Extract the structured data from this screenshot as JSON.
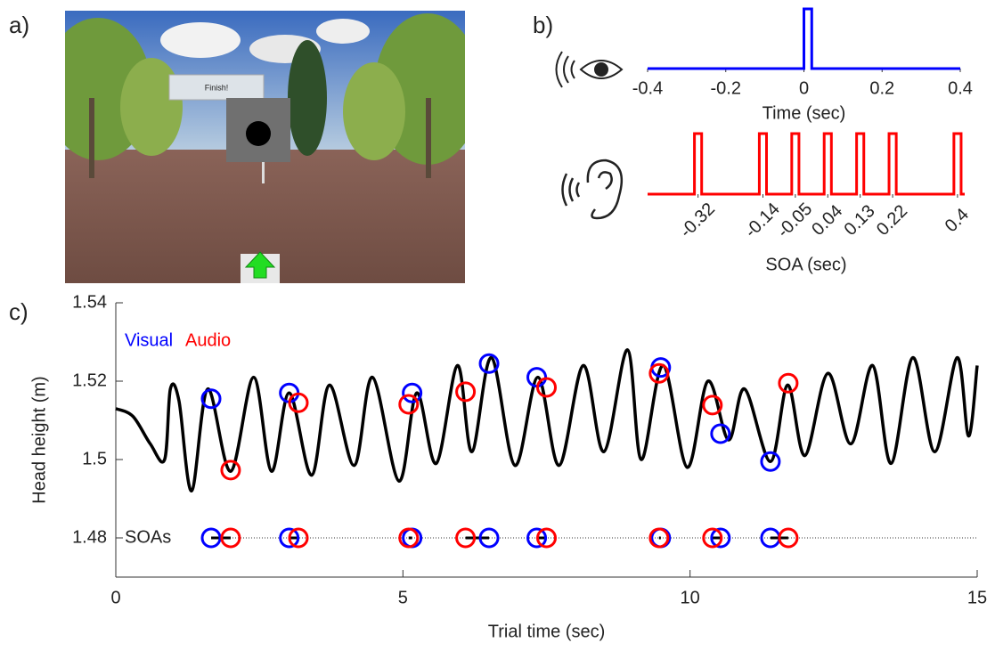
{
  "panels": {
    "a": "a)",
    "b": "b)",
    "c": "c)"
  },
  "scene": {
    "sign": "Finish!"
  },
  "chart_data": [
    {
      "type": "line",
      "xlabel": "Time (sec)",
      "color": "#0000ff",
      "xlim": [
        -0.4,
        0.4
      ],
      "xticks": [
        -0.4,
        -0.2,
        0,
        0.2,
        0.4
      ],
      "ylim": [
        0,
        1
      ],
      "x": [
        -0.4,
        0.0,
        0.0,
        0.02,
        0.02,
        0.4
      ],
      "y": [
        0,
        0,
        1,
        1,
        0,
        0
      ]
    },
    {
      "type": "line",
      "xlabel": "SOA (sec)",
      "color": "#ff0000",
      "rotate_ticks": true,
      "xlim": [
        -0.46,
        0.42
      ],
      "xticks": [
        -0.32,
        -0.14,
        -0.05,
        0.04,
        0.13,
        0.22,
        0.4
      ],
      "ylim": [
        0,
        1
      ],
      "x": [
        -0.46,
        -0.33,
        -0.33,
        -0.31,
        -0.31,
        -0.15,
        -0.15,
        -0.13,
        -0.13,
        -0.06,
        -0.06,
        -0.04,
        -0.04,
        0.03,
        0.03,
        0.05,
        0.05,
        0.12,
        0.12,
        0.14,
        0.14,
        0.21,
        0.21,
        0.23,
        0.23,
        0.39,
        0.39,
        0.41,
        0.41,
        0.42
      ],
      "y": [
        0,
        0,
        1,
        1,
        0,
        0,
        1,
        1,
        0,
        0,
        1,
        1,
        0,
        0,
        1,
        1,
        0,
        0,
        1,
        1,
        0,
        0,
        1,
        1,
        0,
        0,
        1,
        1,
        0,
        0
      ]
    },
    {
      "type": "trace",
      "xlabel": "Trial time (sec)",
      "ylabel": "Head height (m)",
      "xlim": [
        0,
        15
      ],
      "ylim": [
        1.47,
        1.54
      ],
      "xticks": [
        0,
        5,
        10,
        15
      ],
      "yticks": [
        1.48,
        1.5,
        1.52,
        1.54
      ],
      "trace": {
        "color": "#000000",
        "x": [
          0,
          0.3,
          0.6,
          0.85,
          0.95,
          1.1,
          1.32,
          1.6,
          2.0,
          2.4,
          2.71,
          3.02,
          3.41,
          3.72,
          4.15,
          4.47,
          4.93,
          5.24,
          5.58,
          5.95,
          6.2,
          6.54,
          6.95,
          7.35,
          7.72,
          8.14,
          8.5,
          8.91,
          9.15,
          9.53,
          9.95,
          10.31,
          10.67,
          10.95,
          11.4,
          11.7,
          12.0,
          12.4,
          12.8,
          13.18,
          13.5,
          13.88,
          14.26,
          14.65,
          14.85,
          15
        ],
        "y": [
          1.513,
          1.511,
          1.504,
          1.5,
          1.518,
          1.515,
          1.492,
          1.518,
          1.497,
          1.521,
          1.497,
          1.517,
          1.496,
          1.519,
          1.4985,
          1.521,
          1.4945,
          1.517,
          1.499,
          1.524,
          1.502,
          1.526,
          1.4985,
          1.521,
          1.4985,
          1.524,
          1.502,
          1.528,
          1.5,
          1.524,
          1.498,
          1.52,
          1.505,
          1.518,
          1.4995,
          1.519,
          1.501,
          1.522,
          1.504,
          1.524,
          1.499,
          1.526,
          1.502,
          1.526,
          1.506,
          1.524
        ]
      },
      "markers": [
        {
          "name": "Visual",
          "color": "#0000ff",
          "x": [
            1.66,
            3.02,
            5.16,
            6.5,
            7.33,
            9.49,
            10.53,
            11.4
          ],
          "y": [
            1.5155,
            1.517,
            1.517,
            1.5245,
            1.521,
            1.5235,
            1.5066,
            1.4995
          ]
        },
        {
          "name": "Audio",
          "color": "#ff0000",
          "x": [
            2.0,
            3.18,
            5.1,
            6.09,
            7.5,
            9.46,
            10.39,
            11.71
          ],
          "y": [
            1.4973,
            1.5145,
            1.5141,
            1.5173,
            1.5184,
            1.522,
            1.5139,
            1.5195
          ]
        }
      ],
      "soa_row": {
        "label": "SOAs",
        "y": 1.48
      }
    }
  ]
}
